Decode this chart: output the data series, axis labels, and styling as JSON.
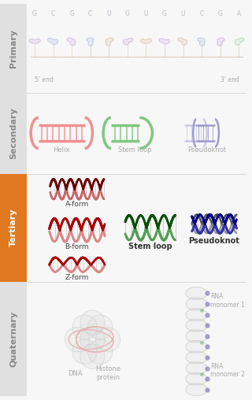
{
  "bg_color": "#f7f7f7",
  "label_bg_primary": "#e0e0e0",
  "label_bg_secondary": "#e0e0e0",
  "label_bg_tertiary": "#e07820",
  "label_bg_quaternary": "#e0e0e0",
  "label_primary_text": "Primary",
  "label_secondary_text": "Secondary",
  "label_tertiary_text": "Tertiary",
  "label_quaternary_text": "Quaternary",
  "primary_seq": [
    "G",
    "C",
    "G",
    "C",
    "U",
    "G",
    "U",
    "G",
    "U",
    "C",
    "G",
    "A"
  ],
  "primary_label_5": "5' end",
  "primary_label_3": "3' end",
  "secondary_labels": [
    "Helix",
    "Stem loop",
    "Pseudoknot"
  ],
  "tertiary_left_labels": [
    "A-form",
    "B-form",
    "Z-form"
  ],
  "tertiary_center_label": "Stem loop",
  "tertiary_right_label": "Pseudoknot",
  "quaternary_labels": [
    "DNA",
    "Histone\nprotein",
    "RNA\nmonomer 1",
    "RNA\nmonomer 2"
  ],
  "helix_color": "#f09090",
  "stemloop_color": "#80c880",
  "pseudoknot_color": "#9898cc",
  "aform_dark": "#6b0000",
  "aform_light": "#cc6666",
  "bform_dark": "#aa0000",
  "bform_light": "#dd8888",
  "zform_dark": "#aa0000",
  "zform_light": "#dd8888",
  "tert_stemloop_dark": "#005000",
  "tert_stemloop_light": "#50a050",
  "tert_pseudo_blue": "#000088",
  "tert_pseudo_lgray": "#999999",
  "tert_pseudo_dgray": "#555555",
  "quat_dna_color": "#e8b0b0",
  "quat_histone_color": "#cccccc",
  "quat_rna_color": "#bbbbbb",
  "quat_dot_purple": "#8888bb",
  "quat_dot_green": "#88bb88"
}
